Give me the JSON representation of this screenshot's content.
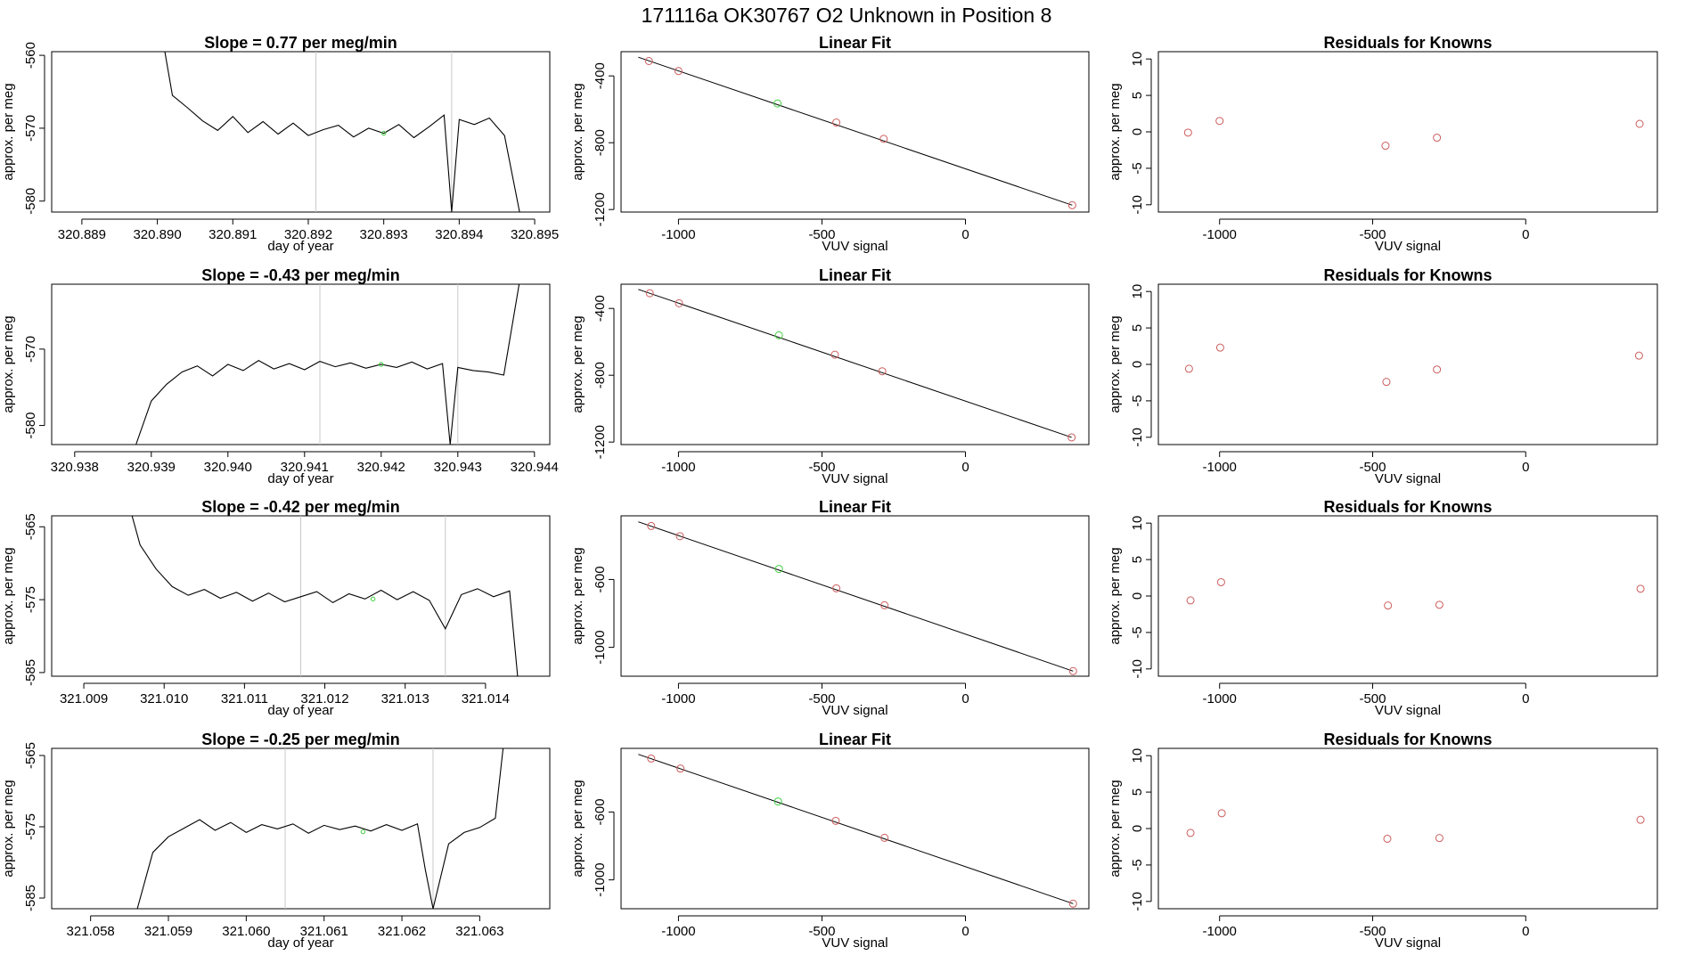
{
  "suptitle": "171116a      OK30767   O2 Unknown in Position  8",
  "colors": {
    "line": "#000000",
    "known": "#cd5c5c",
    "unknown": "#3ecf3e",
    "vline": "#c8c8c8"
  },
  "chart_data": [
    {
      "type": "line",
      "title": "Slope =  0.77  per meg/min",
      "xlabel": "day of year",
      "ylabel": "approx. per meg",
      "xlim": [
        320.8886,
        320.8952
      ],
      "ylim": [
        -581.5,
        -559.5
      ],
      "xticks": [
        320.889,
        320.89,
        320.891,
        320.892,
        320.893,
        320.894,
        320.895
      ],
      "xtick_labels": [
        "320.889",
        "320.890",
        "320.891",
        "320.892",
        "320.893",
        "320.894",
        "320.895"
      ],
      "yticks": [
        -560,
        -570,
        -580
      ],
      "ytick_labels": [
        "-560",
        "-570",
        "-580"
      ],
      "vlines": [
        320.8921,
        320.8939
      ],
      "unknown_point": {
        "x": 320.893,
        "y": -570.7
      },
      "x": [
        320.8901,
        320.8902,
        320.8904,
        320.8906,
        320.8908,
        320.891,
        320.8912,
        320.8914,
        320.8916,
        320.8918,
        320.892,
        320.8922,
        320.8924,
        320.8926,
        320.8928,
        320.893,
        320.8932,
        320.8934,
        320.8936,
        320.8938,
        320.8939,
        320.894,
        320.8942,
        320.8944,
        320.8946,
        320.8948
      ],
      "y": [
        -559.5,
        -565.5,
        -567.2,
        -569.0,
        -570.3,
        -568.4,
        -570.6,
        -569.1,
        -570.8,
        -569.3,
        -571.0,
        -570.2,
        -569.6,
        -571.2,
        -570.0,
        -570.7,
        -569.5,
        -571.3,
        -569.8,
        -568.2,
        -581.5,
        -568.8,
        -569.5,
        -568.6,
        -571.0,
        -581.5
      ]
    },
    {
      "type": "line",
      "title": "Slope =  -0.43  per meg/min",
      "xlabel": "day of year",
      "ylabel": "approx. per meg",
      "xlim": [
        320.9377,
        320.9442
      ],
      "ylim": [
        -582.5,
        -561.5
      ],
      "xticks": [
        320.938,
        320.939,
        320.94,
        320.941,
        320.942,
        320.943,
        320.944
      ],
      "xtick_labels": [
        "320.938",
        "320.939",
        "320.940",
        "320.941",
        "320.942",
        "320.943",
        "320.944"
      ],
      "yticks": [
        -570,
        -580
      ],
      "ytick_labels": [
        "-570",
        "-580"
      ],
      "vlines": [
        320.9412,
        320.943
      ],
      "unknown_point": {
        "x": 320.942,
        "y": -572.0
      },
      "x": [
        320.9388,
        320.939,
        320.9392,
        320.9394,
        320.9396,
        320.9398,
        320.94,
        320.9402,
        320.9404,
        320.9406,
        320.9408,
        320.941,
        320.9412,
        320.9414,
        320.9416,
        320.9418,
        320.942,
        320.9422,
        320.9424,
        320.9426,
        320.9428,
        320.9429,
        320.943,
        320.9432,
        320.9434,
        320.9436,
        320.9438
      ],
      "y": [
        -582.5,
        -576.8,
        -574.6,
        -573.0,
        -572.2,
        -573.5,
        -572.0,
        -572.8,
        -571.5,
        -572.6,
        -571.9,
        -572.7,
        -571.6,
        -572.3,
        -571.8,
        -572.5,
        -572.0,
        -572.4,
        -571.7,
        -572.6,
        -571.9,
        -582.5,
        -572.4,
        -572.8,
        -573.0,
        -573.4,
        -561.5
      ]
    },
    {
      "type": "line",
      "title": "Slope =  -0.42  per meg/min",
      "xlabel": "day of year",
      "ylabel": "approx. per meg",
      "xlim": [
        321.0086,
        321.0148
      ],
      "ylim": [
        -585.5,
        -563.5
      ],
      "xticks": [
        321.009,
        321.01,
        321.011,
        321.012,
        321.013,
        321.014
      ],
      "xtick_labels": [
        "321.009",
        "321.010",
        "321.011",
        "321.012",
        "321.013",
        "321.014"
      ],
      "yticks": [
        -565,
        -575,
        -585
      ],
      "ytick_labels": [
        "-565",
        "-575",
        "-585"
      ],
      "vlines": [
        321.0117,
        321.0135
      ],
      "unknown_point": {
        "x": 321.0126,
        "y": -574.9
      },
      "x": [
        321.0096,
        321.0097,
        321.0099,
        321.0101,
        321.0103,
        321.0105,
        321.0107,
        321.0109,
        321.0111,
        321.0113,
        321.0115,
        321.0117,
        321.0119,
        321.0121,
        321.0123,
        321.0125,
        321.0127,
        321.0129,
        321.0131,
        321.0133,
        321.0135,
        321.0137,
        321.0139,
        321.0141,
        321.0143,
        321.0144
      ],
      "y": [
        -563.5,
        -567.5,
        -570.8,
        -573.2,
        -574.4,
        -573.6,
        -574.8,
        -574.0,
        -575.2,
        -574.1,
        -575.3,
        -574.6,
        -573.9,
        -575.4,
        -574.2,
        -574.9,
        -573.7,
        -575.0,
        -573.9,
        -575.1,
        -579.0,
        -574.3,
        -573.5,
        -574.6,
        -573.8,
        -585.5
      ]
    },
    {
      "type": "line",
      "title": "Slope =  -0.25  per meg/min",
      "xlabel": "day of year",
      "ylabel": "approx. per meg",
      "xlim": [
        321.0575,
        321.0639
      ],
      "ylim": [
        -586.5,
        -564.0
      ],
      "xticks": [
        321.058,
        321.059,
        321.06,
        321.061,
        321.062,
        321.063
      ],
      "xtick_labels": [
        "321.058",
        "321.059",
        "321.060",
        "321.061",
        "321.062",
        "321.063"
      ],
      "yticks": [
        -565,
        -575,
        -585
      ],
      "ytick_labels": [
        "-565",
        "-575",
        "-585"
      ],
      "vlines": [
        321.0605,
        321.0624
      ],
      "unknown_point": {
        "x": 321.0615,
        "y": -575.7
      },
      "x": [
        321.0586,
        321.0588,
        321.059,
        321.0592,
        321.0594,
        321.0596,
        321.0598,
        321.06,
        321.0602,
        321.0604,
        321.0606,
        321.0608,
        321.061,
        321.0612,
        321.0614,
        321.0616,
        321.0618,
        321.062,
        321.0622,
        321.0623,
        321.0624,
        321.0626,
        321.0628,
        321.063,
        321.0632,
        321.0633
      ],
      "y": [
        -586.5,
        -578.6,
        -576.4,
        -575.2,
        -574.0,
        -575.5,
        -574.4,
        -575.8,
        -574.7,
        -575.3,
        -574.6,
        -575.9,
        -574.8,
        -575.4,
        -574.9,
        -575.6,
        -574.7,
        -575.5,
        -574.6,
        -581.0,
        -586.5,
        -577.4,
        -575.8,
        -575.1,
        -573.8,
        -564.0
      ]
    },
    {
      "type": "scatter",
      "title": "Linear Fit",
      "xlabel": "VUV signal",
      "ylabel": "approx. per meg",
      "xlim": [
        -1200,
        430
      ],
      "ylim": [
        -1215,
        -255
      ],
      "xticks": [
        -1000,
        -500,
        0
      ],
      "xtick_labels": [
        "-1000",
        "-500",
        "0"
      ],
      "yticks": [
        -400,
        -800,
        -1200
      ],
      "ytick_labels": [
        "-400",
        "-800",
        "-1200"
      ],
      "known_points": [
        [
          -1103,
          -311
        ],
        [
          -1000,
          -371
        ],
        [
          -450,
          -679
        ],
        [
          -285,
          -777
        ],
        [
          372,
          -1174
        ]
      ],
      "unknown_point": {
        "x": -655,
        "y": -565
      },
      "fit_line": [
        [
          -1140,
          -288
        ],
        [
          372,
          -1174
        ]
      ]
    },
    {
      "type": "scatter",
      "title": "Linear Fit",
      "xlabel": "VUV signal",
      "ylabel": "approx. per meg",
      "xlim": [
        -1200,
        430
      ],
      "ylim": [
        -1215,
        -255
      ],
      "xticks": [
        -1000,
        -500,
        0
      ],
      "xtick_labels": [
        "-1000",
        "-500",
        "0"
      ],
      "yticks": [
        -400,
        -800,
        -1200
      ],
      "ytick_labels": [
        "-400",
        "-800",
        "-1200"
      ],
      "known_points": [
        [
          -1100,
          -309
        ],
        [
          -998,
          -369
        ],
        [
          -455,
          -677
        ],
        [
          -290,
          -776
        ],
        [
          370,
          -1172
        ]
      ],
      "unknown_point": {
        "x": -650,
        "y": -561
      },
      "fit_line": [
        [
          -1140,
          -286
        ],
        [
          370,
          -1172
        ]
      ]
    },
    {
      "type": "scatter",
      "title": "Linear Fit",
      "xlabel": "VUV signal",
      "ylabel": "approx. per meg",
      "xlim": [
        -1200,
        430
      ],
      "ylim": [
        -1170,
        -225
      ],
      "xticks": [
        -1000,
        -500,
        0
      ],
      "xtick_labels": [
        "-1000",
        "-500",
        "0"
      ],
      "yticks": [
        -600,
        -1000
      ],
      "ytick_labels": [
        "-600",
        "-1000"
      ],
      "known_points": [
        [
          -1095,
          -285
        ],
        [
          -995,
          -345
        ],
        [
          -450,
          -652
        ],
        [
          -282,
          -752
        ],
        [
          375,
          -1140
        ]
      ],
      "unknown_point": {
        "x": -650,
        "y": -538
      },
      "fit_line": [
        [
          -1140,
          -260
        ],
        [
          375,
          -1140
        ]
      ]
    },
    {
      "type": "scatter",
      "title": "Linear Fit",
      "xlabel": "VUV signal",
      "ylabel": "approx. per meg",
      "xlim": [
        -1200,
        430
      ],
      "ylim": [
        -1170,
        -225
      ],
      "xticks": [
        -1000,
        -500,
        0
      ],
      "xtick_labels": [
        "-1000",
        "-500",
        "0"
      ],
      "yticks": [
        -600,
        -1000
      ],
      "ytick_labels": [
        "-600",
        "-1000"
      ],
      "known_points": [
        [
          -1095,
          -285
        ],
        [
          -993,
          -344
        ],
        [
          -452,
          -652
        ],
        [
          -282,
          -752
        ],
        [
          375,
          -1140
        ]
      ],
      "unknown_point": {
        "x": -653,
        "y": -538
      },
      "fit_line": [
        [
          -1140,
          -260
        ],
        [
          375,
          -1140
        ]
      ]
    },
    {
      "type": "scatter",
      "title": "Residuals for Knowns",
      "xlabel": "VUV signal",
      "ylabel": "approx. per meg",
      "xlim": [
        -1200,
        430
      ],
      "ylim": [
        -11,
        11
      ],
      "xticks": [
        -1000,
        -500,
        0
      ],
      "xtick_labels": [
        "-1000",
        "-500",
        "0"
      ],
      "yticks": [
        10,
        5,
        0,
        -5,
        -10
      ],
      "ytick_labels": [
        "10",
        "5",
        "0",
        "-5",
        "-10"
      ],
      "known_points": [
        [
          -1103,
          -0.1
        ],
        [
          -1000,
          1.5
        ],
        [
          -458,
          -1.9
        ],
        [
          -290,
          -0.8
        ],
        [
          372,
          1.1
        ]
      ]
    },
    {
      "type": "scatter",
      "title": "Residuals for Knowns",
      "xlabel": "VUV signal",
      "ylabel": "approx. per meg",
      "xlim": [
        -1200,
        430
      ],
      "ylim": [
        -11,
        11
      ],
      "xticks": [
        -1000,
        -500,
        0
      ],
      "xtick_labels": [
        "-1000",
        "-500",
        "0"
      ],
      "yticks": [
        10,
        5,
        0,
        -5,
        -10
      ],
      "ytick_labels": [
        "10",
        "5",
        "0",
        "-5",
        "-10"
      ],
      "known_points": [
        [
          -1100,
          -0.6
        ],
        [
          -998,
          2.3
        ],
        [
          -455,
          -2.4
        ],
        [
          -290,
          -0.7
        ],
        [
          370,
          1.2
        ]
      ]
    },
    {
      "type": "scatter",
      "title": "Residuals for Knowns",
      "xlabel": "VUV signal",
      "ylabel": "approx. per meg",
      "xlim": [
        -1200,
        430
      ],
      "ylim": [
        -11,
        11
      ],
      "xticks": [
        -1000,
        -500,
        0
      ],
      "xtick_labels": [
        "-1000",
        "-500",
        "0"
      ],
      "yticks": [
        10,
        5,
        0,
        -5,
        -10
      ],
      "ytick_labels": [
        "10",
        "5",
        "0",
        "-5",
        "-10"
      ],
      "known_points": [
        [
          -1095,
          -0.6
        ],
        [
          -995,
          1.9
        ],
        [
          -450,
          -1.3
        ],
        [
          -282,
          -1.2
        ],
        [
          375,
          1.0
        ]
      ]
    },
    {
      "type": "scatter",
      "title": "Residuals for Knowns",
      "xlabel": "VUV signal",
      "ylabel": "approx. per meg",
      "xlim": [
        -1200,
        430
      ],
      "ylim": [
        -11,
        11
      ],
      "xticks": [
        -1000,
        -500,
        0
      ],
      "xtick_labels": [
        "-1000",
        "-500",
        "0"
      ],
      "yticks": [
        10,
        5,
        0,
        -5,
        -10
      ],
      "ytick_labels": [
        "10",
        "5",
        "0",
        "-5",
        "-10"
      ],
      "known_points": [
        [
          -1095,
          -0.6
        ],
        [
          -993,
          2.1
        ],
        [
          -452,
          -1.4
        ],
        [
          -282,
          -1.3
        ],
        [
          375,
          1.2
        ]
      ]
    }
  ]
}
